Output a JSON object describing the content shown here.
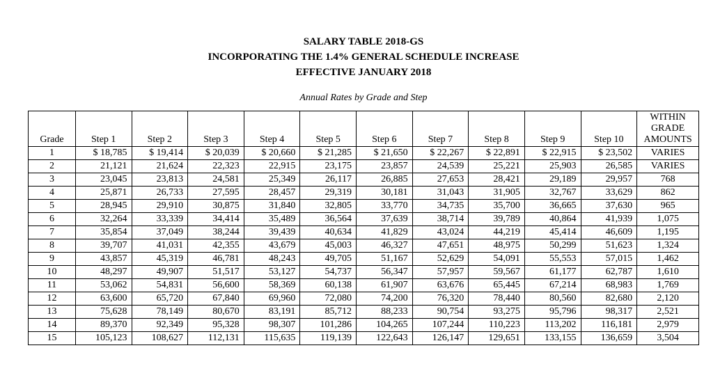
{
  "header": {
    "line1": "SALARY TABLE 2018-GS",
    "line2": "INCORPORATING THE 1.4% GENERAL SCHEDULE INCREASE",
    "line3": "EFFECTIVE JANUARY 2018",
    "subtitle": "Annual Rates by Grade and Step"
  },
  "table": {
    "columns": [
      "Grade",
      "Step 1",
      "Step 2",
      "Step 3",
      "Step 4",
      "Step 5",
      "Step 6",
      "Step 7",
      "Step 8",
      "Step 9",
      "Step 10",
      "WITHIN GRADE AMOUNTS"
    ],
    "grades": [
      "1",
      "2",
      "3",
      "4",
      "5",
      "6",
      "7",
      "8",
      "9",
      "10",
      "11",
      "12",
      "13",
      "14",
      "15"
    ],
    "steps": [
      [
        "$ 18,785",
        "$ 19,414",
        "$ 20,039",
        "$ 20,660",
        "$ 21,285",
        "$ 21,650",
        "$ 22,267",
        "$ 22,891",
        "$ 22,915",
        "$ 23,502"
      ],
      [
        "21,121",
        "21,624",
        "22,323",
        "22,915",
        "23,175",
        "23,857",
        "24,539",
        "25,221",
        "25,903",
        "26,585"
      ],
      [
        "23,045",
        "23,813",
        "24,581",
        "25,349",
        "26,117",
        "26,885",
        "27,653",
        "28,421",
        "29,189",
        "29,957"
      ],
      [
        "25,871",
        "26,733",
        "27,595",
        "28,457",
        "29,319",
        "30,181",
        "31,043",
        "31,905",
        "32,767",
        "33,629"
      ],
      [
        "28,945",
        "29,910",
        "30,875",
        "31,840",
        "32,805",
        "33,770",
        "34,735",
        "35,700",
        "36,665",
        "37,630"
      ],
      [
        "32,264",
        "33,339",
        "34,414",
        "35,489",
        "36,564",
        "37,639",
        "38,714",
        "39,789",
        "40,864",
        "41,939"
      ],
      [
        "35,854",
        "37,049",
        "38,244",
        "39,439",
        "40,634",
        "41,829",
        "43,024",
        "44,219",
        "45,414",
        "46,609"
      ],
      [
        "39,707",
        "41,031",
        "42,355",
        "43,679",
        "45,003",
        "46,327",
        "47,651",
        "48,975",
        "50,299",
        "51,623"
      ],
      [
        "43,857",
        "45,319",
        "46,781",
        "48,243",
        "49,705",
        "51,167",
        "52,629",
        "54,091",
        "55,553",
        "57,015"
      ],
      [
        "48,297",
        "49,907",
        "51,517",
        "53,127",
        "54,737",
        "56,347",
        "57,957",
        "59,567",
        "61,177",
        "62,787"
      ],
      [
        "53,062",
        "54,831",
        "56,600",
        "58,369",
        "60,138",
        "61,907",
        "63,676",
        "65,445",
        "67,214",
        "68,983"
      ],
      [
        "63,600",
        "65,720",
        "67,840",
        "69,960",
        "72,080",
        "74,200",
        "76,320",
        "78,440",
        "80,560",
        "82,680"
      ],
      [
        "75,628",
        "78,149",
        "80,670",
        "83,191",
        "85,712",
        "88,233",
        "90,754",
        "93,275",
        "95,796",
        "98,317"
      ],
      [
        "89,370",
        "92,349",
        "95,328",
        "98,307",
        "101,286",
        "104,265",
        "107,244",
        "110,223",
        "113,202",
        "116,181"
      ],
      [
        "105,123",
        "108,627",
        "112,131",
        "115,635",
        "119,139",
        "122,643",
        "126,147",
        "129,651",
        "133,155",
        "136,659"
      ]
    ],
    "amounts": [
      "VARIES",
      "VARIES",
      "768",
      "862",
      "965",
      "1,075",
      "1,195",
      "1,324",
      "1,462",
      "1,610",
      "1,769",
      "2,120",
      "2,521",
      "2,979",
      "3,504"
    ]
  },
  "style": {
    "font_family": "Times New Roman",
    "title_fontsize": 15,
    "body_fontsize": 14,
    "text_color": "#000000",
    "background_color": "#ffffff",
    "border_color": "#000000",
    "col_widths": {
      "grade": 62,
      "step": 74,
      "amount": 78
    }
  }
}
